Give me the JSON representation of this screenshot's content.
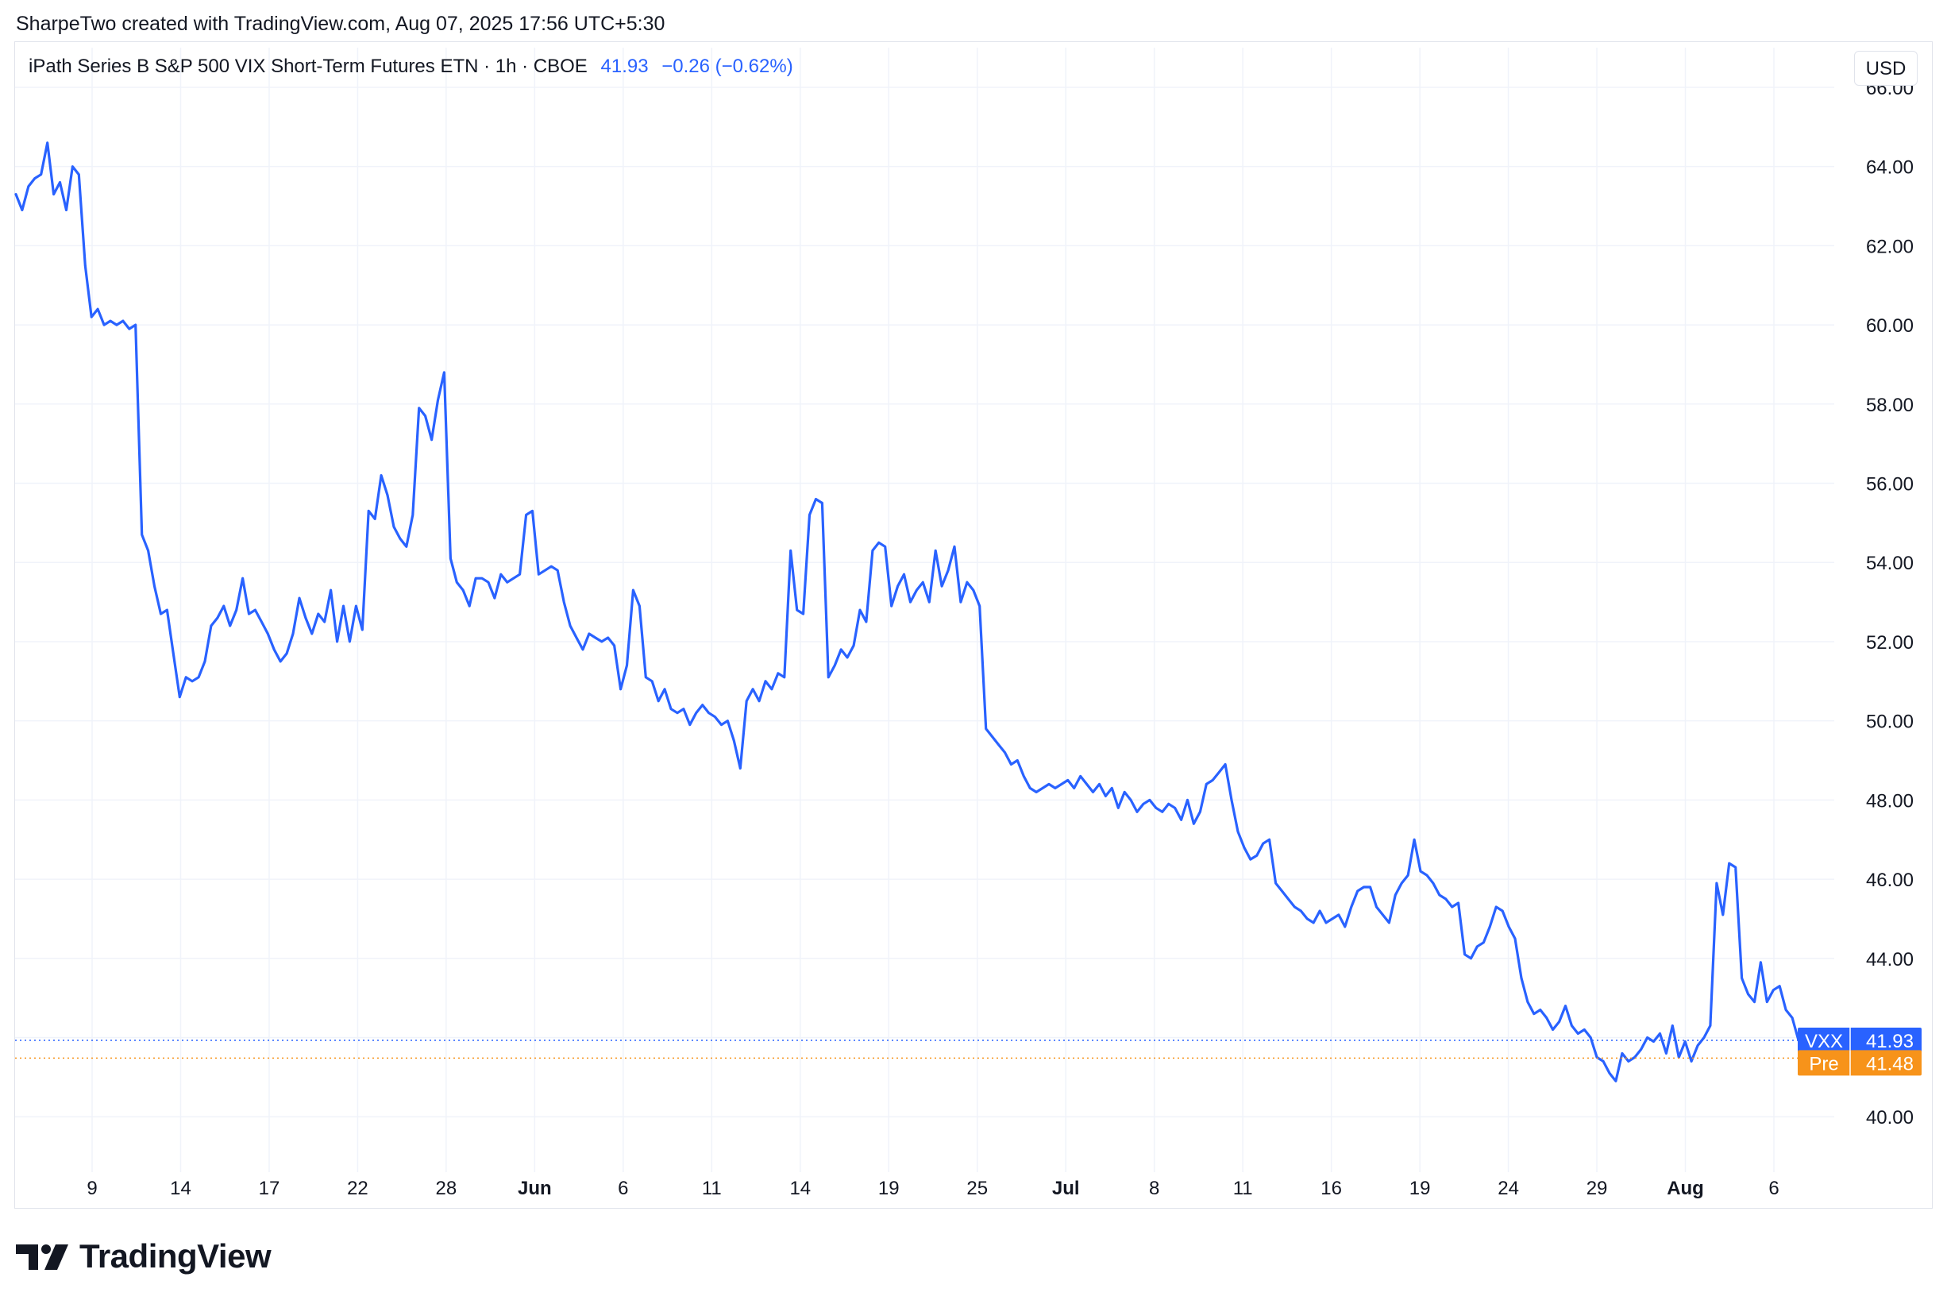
{
  "header": {
    "caption": "SharpeTwo created with TradingView.com, Aug 07, 2025 17:56 UTC+5:30"
  },
  "legend": {
    "symbol_description": "iPath Series B S&P 500 VIX Short-Term Futures ETN · 1h · CBOE",
    "last_value": "41.93",
    "change": "−0.26 (−0.62%)"
  },
  "currency_button": "USD",
  "brand": {
    "logo_text": "TradingView"
  },
  "colors": {
    "line": "#2962ff",
    "pre_market": "#f7931a",
    "grid": "#f0f3fa",
    "text": "#131722"
  },
  "chart_data": {
    "type": "line",
    "title": "",
    "xlabel": "",
    "ylabel": "",
    "ylim": [
      38.6,
      66.2
    ],
    "y_ticks": [
      "40.00",
      "42.00",
      "44.00",
      "46.00",
      "48.00",
      "50.00",
      "52.00",
      "54.00",
      "56.00",
      "58.00",
      "60.00",
      "62.00",
      "64.00",
      "66.00"
    ],
    "x_ticks": [
      {
        "label": "9",
        "bold": false
      },
      {
        "label": "14",
        "bold": false
      },
      {
        "label": "17",
        "bold": false
      },
      {
        "label": "22",
        "bold": false
      },
      {
        "label": "28",
        "bold": false
      },
      {
        "label": "Jun",
        "bold": true
      },
      {
        "label": "6",
        "bold": false
      },
      {
        "label": "11",
        "bold": false
      },
      {
        "label": "14",
        "bold": false
      },
      {
        "label": "19",
        "bold": false
      },
      {
        "label": "25",
        "bold": false
      },
      {
        "label": "Jul",
        "bold": true
      },
      {
        "label": "8",
        "bold": false
      },
      {
        "label": "11",
        "bold": false
      },
      {
        "label": "16",
        "bold": false
      },
      {
        "label": "19",
        "bold": false
      },
      {
        "label": "24",
        "bold": false
      },
      {
        "label": "29",
        "bold": false
      },
      {
        "label": "Aug",
        "bold": true
      },
      {
        "label": "6",
        "bold": false
      }
    ],
    "grid": true,
    "series": [
      {
        "values": [
          63.3,
          62.9,
          63.5,
          63.7,
          63.8,
          64.6,
          63.3,
          63.6,
          62.9,
          64.0,
          63.8,
          61.5,
          60.2,
          60.4,
          60.0,
          60.1,
          60.0,
          60.1,
          59.9,
          60.0,
          54.7,
          54.3,
          53.4,
          52.7,
          52.8,
          51.7,
          50.6,
          51.1,
          51.0,
          51.1,
          51.5,
          52.4,
          52.6,
          52.9,
          52.4,
          52.8,
          53.6,
          52.7,
          52.8,
          52.5,
          52.2,
          51.8,
          51.5,
          51.7,
          52.2,
          53.1,
          52.6,
          52.2,
          52.7,
          52.5,
          53.3,
          52.0,
          52.9,
          52.0,
          52.9,
          52.3,
          55.3,
          55.1,
          56.2,
          55.7,
          54.9,
          54.6,
          54.4,
          55.2,
          57.9,
          57.7,
          57.1,
          58.1,
          58.8,
          54.1,
          53.5,
          53.3,
          52.9,
          53.6,
          53.6,
          53.5,
          53.1,
          53.7,
          53.5,
          53.6,
          53.7,
          55.2,
          55.3,
          53.7,
          53.8,
          53.9,
          53.8,
          53.0,
          52.4,
          52.1,
          51.8,
          52.2,
          52.1,
          52.0,
          52.1,
          51.9,
          50.8,
          51.4,
          53.3,
          52.9,
          51.1,
          51.0,
          50.5,
          50.8,
          50.3,
          50.2,
          50.3,
          49.9,
          50.2,
          50.4,
          50.2,
          50.1,
          49.9,
          50.0,
          49.5,
          48.8,
          50.5,
          50.8,
          50.5,
          51.0,
          50.8,
          51.2,
          51.1,
          54.3,
          52.8,
          52.7,
          55.2,
          55.6,
          55.5,
          51.1,
          51.4,
          51.8,
          51.6,
          51.9,
          52.8,
          52.5,
          54.3,
          54.5,
          54.4,
          52.9,
          53.4,
          53.7,
          53.0,
          53.3,
          53.5,
          53.0,
          54.3,
          53.4,
          53.8,
          54.4,
          53.0,
          53.5,
          53.3,
          52.9,
          49.8,
          49.6,
          49.4,
          49.2,
          48.9,
          49.0,
          48.6,
          48.3,
          48.2,
          48.3,
          48.4,
          48.3,
          48.4,
          48.5,
          48.3,
          48.6,
          48.4,
          48.2,
          48.4,
          48.1,
          48.3,
          47.8,
          48.2,
          48.0,
          47.7,
          47.9,
          48.0,
          47.8,
          47.7,
          47.9,
          47.8,
          47.5,
          48.0,
          47.4,
          47.7,
          48.4,
          48.5,
          48.7,
          48.9,
          48.0,
          47.2,
          46.8,
          46.5,
          46.6,
          46.9,
          47.0,
          45.9,
          45.7,
          45.5,
          45.3,
          45.2,
          45.0,
          44.9,
          45.2,
          44.9,
          45.0,
          45.1,
          44.8,
          45.3,
          45.7,
          45.8,
          45.8,
          45.3,
          45.1,
          44.9,
          45.6,
          45.9,
          46.1,
          47.0,
          46.2,
          46.1,
          45.9,
          45.6,
          45.5,
          45.3,
          45.4,
          44.1,
          44.0,
          44.3,
          44.4,
          44.8,
          45.3,
          45.2,
          44.8,
          44.5,
          43.5,
          42.9,
          42.6,
          42.7,
          42.5,
          42.2,
          42.4,
          42.8,
          42.3,
          42.1,
          42.2,
          42.0,
          41.5,
          41.4,
          41.1,
          40.9,
          41.6,
          41.4,
          41.5,
          41.7,
          42.0,
          41.9,
          42.1,
          41.6,
          42.3,
          41.5,
          41.9,
          41.4,
          41.8,
          42.0,
          42.3,
          45.9,
          45.1,
          46.4,
          46.3,
          43.5,
          43.1,
          42.9,
          43.9,
          42.9,
          43.2,
          43.3,
          42.7,
          42.5,
          41.93
        ]
      }
    ],
    "last_price": {
      "label": "VXX",
      "value": 41.93,
      "text": "41.93"
    },
    "pre_market": {
      "label": "Pre",
      "value": 41.48,
      "text": "41.48"
    }
  }
}
